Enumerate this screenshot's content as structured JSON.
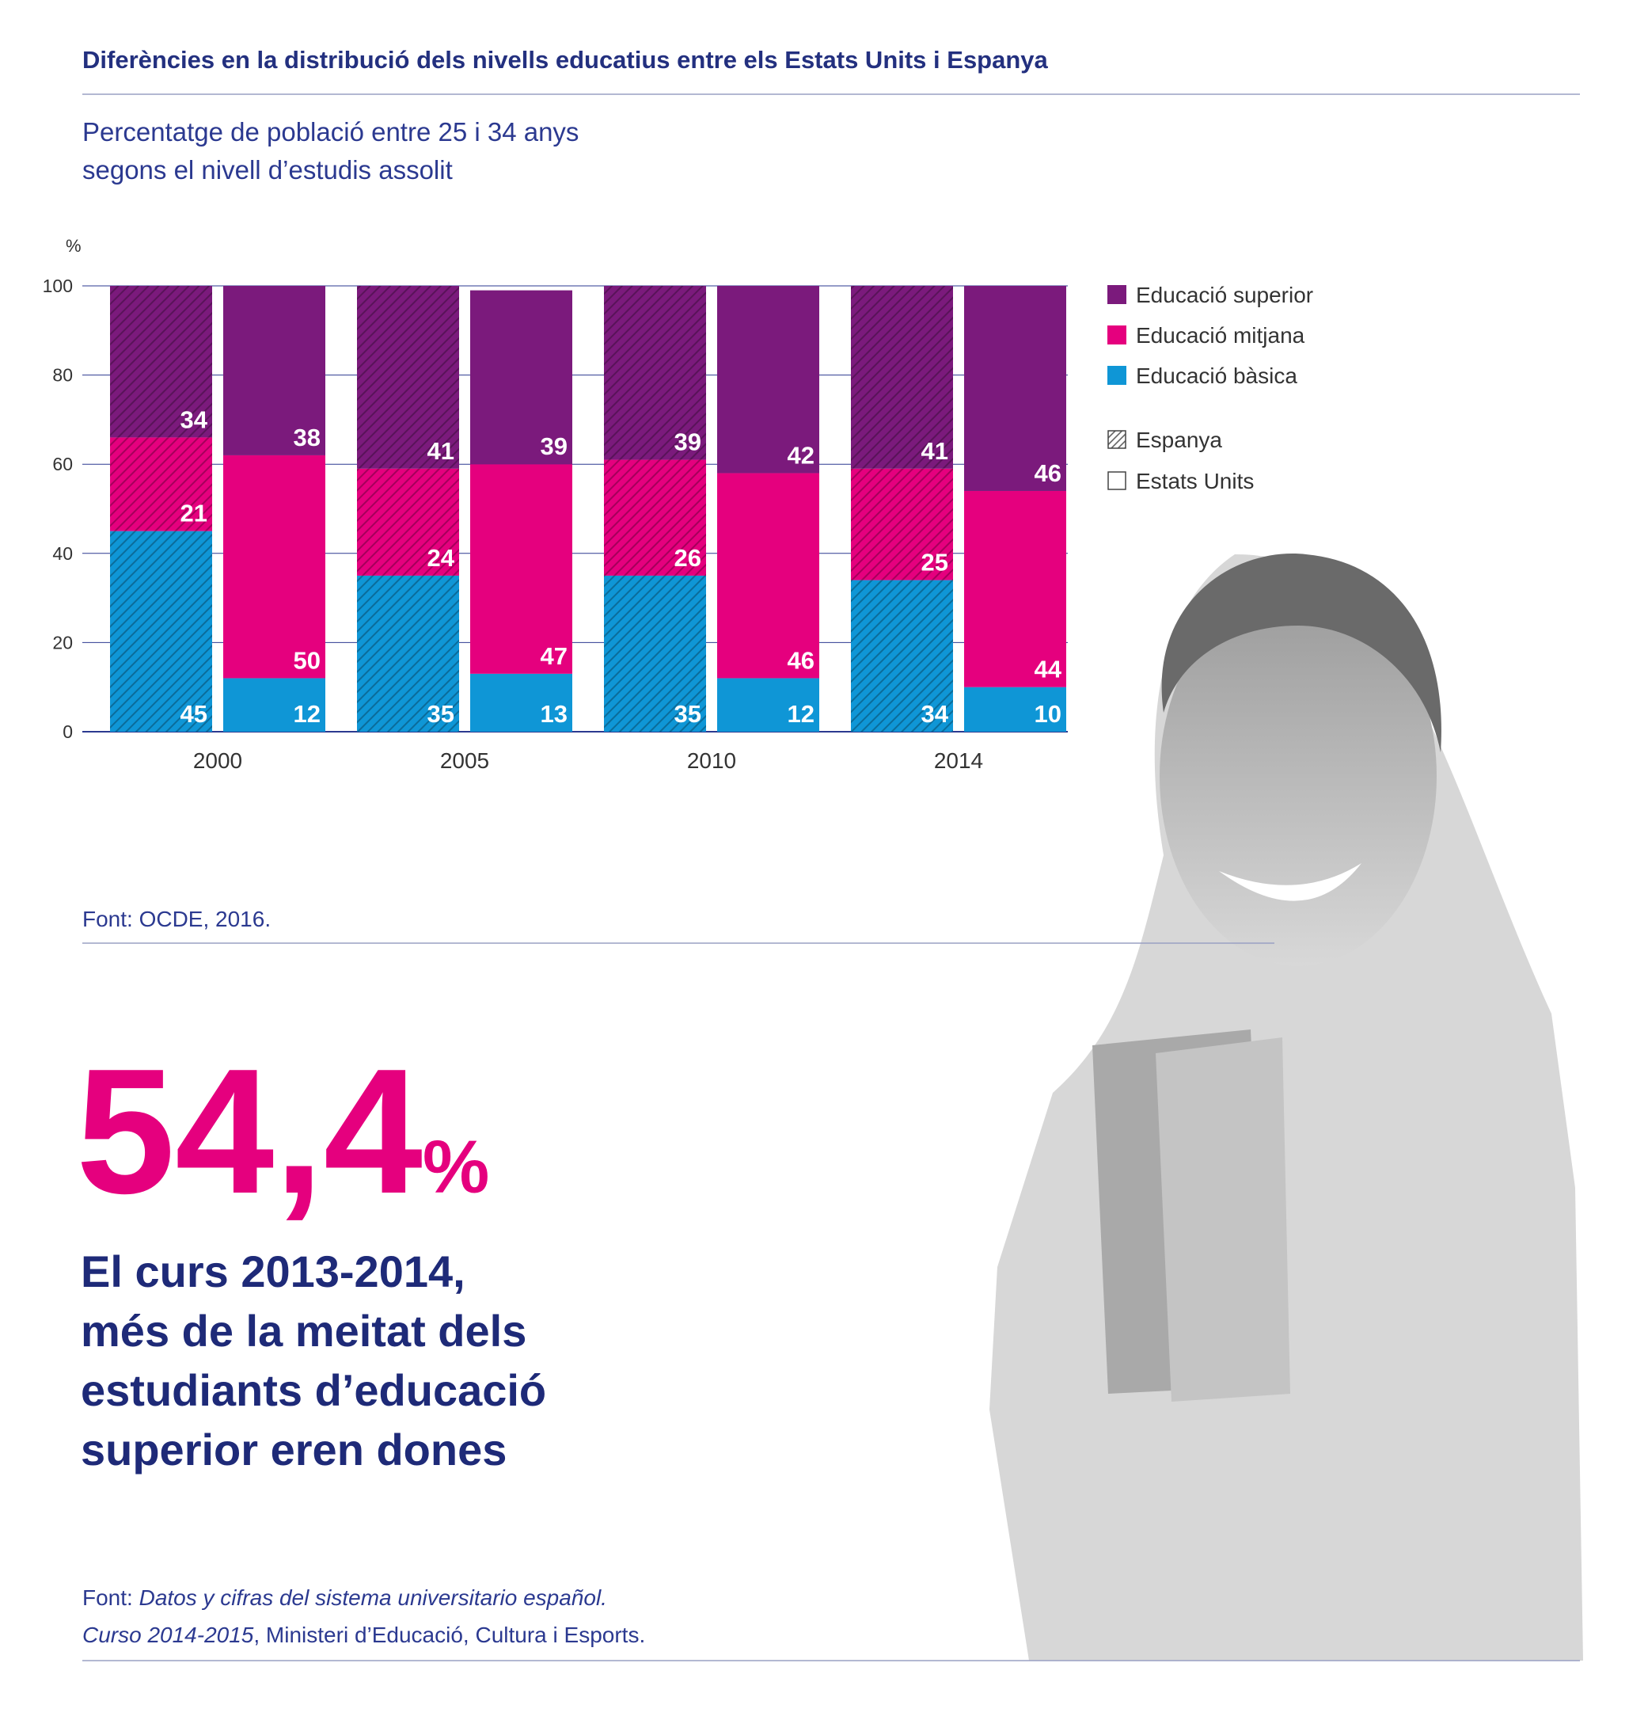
{
  "header": {
    "title": "Diferències en la distribució dels nivells educatius entre els Estats Units i Espanya",
    "subtitle_lines": [
      "Percentatge de població entre 25 i 34 anys",
      "segons el nivell d’estudis assolit"
    ]
  },
  "chart_data": {
    "type": "bar",
    "stacked": true,
    "y_label": "%",
    "categories": [
      "2000",
      "2005",
      "2010",
      "2014"
    ],
    "stacks": [
      {
        "name": "Espanya",
        "hatched": true
      },
      {
        "name": "Estats Units",
        "hatched": false
      }
    ],
    "series": [
      {
        "name": "Educació bàsica",
        "color": "#0f96d6",
        "values": [
          [
            45,
            12
          ],
          [
            35,
            13
          ],
          [
            35,
            12
          ],
          [
            34,
            10
          ]
        ]
      },
      {
        "name": "Educació mitjana",
        "color": "#e5007e",
        "values": [
          [
            21,
            50
          ],
          [
            24,
            47
          ],
          [
            26,
            46
          ],
          [
            25,
            44
          ]
        ]
      },
      {
        "name": "Educació superior",
        "color": "#7b1a7c",
        "values": [
          [
            34,
            38
          ],
          [
            41,
            39
          ],
          [
            39,
            42
          ],
          [
            41,
            46
          ]
        ]
      }
    ],
    "ylim": [
      0,
      100
    ],
    "yticks": [
      0,
      20,
      40,
      60,
      80,
      100
    ],
    "grid": true,
    "legend_position": "right",
    "source": "Font: OCDE, 2016."
  },
  "highlight": {
    "number": "54,4",
    "unit": "%",
    "statement_lines": [
      "El curs 2013-2014,",
      "més de la meitat dels",
      "estudiants d’educació",
      "superior eren dones"
    ]
  },
  "footer": {
    "source_lines": [
      [
        {
          "text": "Font: ",
          "italic": false
        },
        {
          "text": "Datos y cifras del sistema universitario español.",
          "italic": true
        }
      ],
      [
        {
          "text": "Curso 2014-2015",
          "italic": true
        },
        {
          "text": ", Ministeri d’Educació, Cultura i Esports.",
          "italic": false
        }
      ]
    ]
  }
}
